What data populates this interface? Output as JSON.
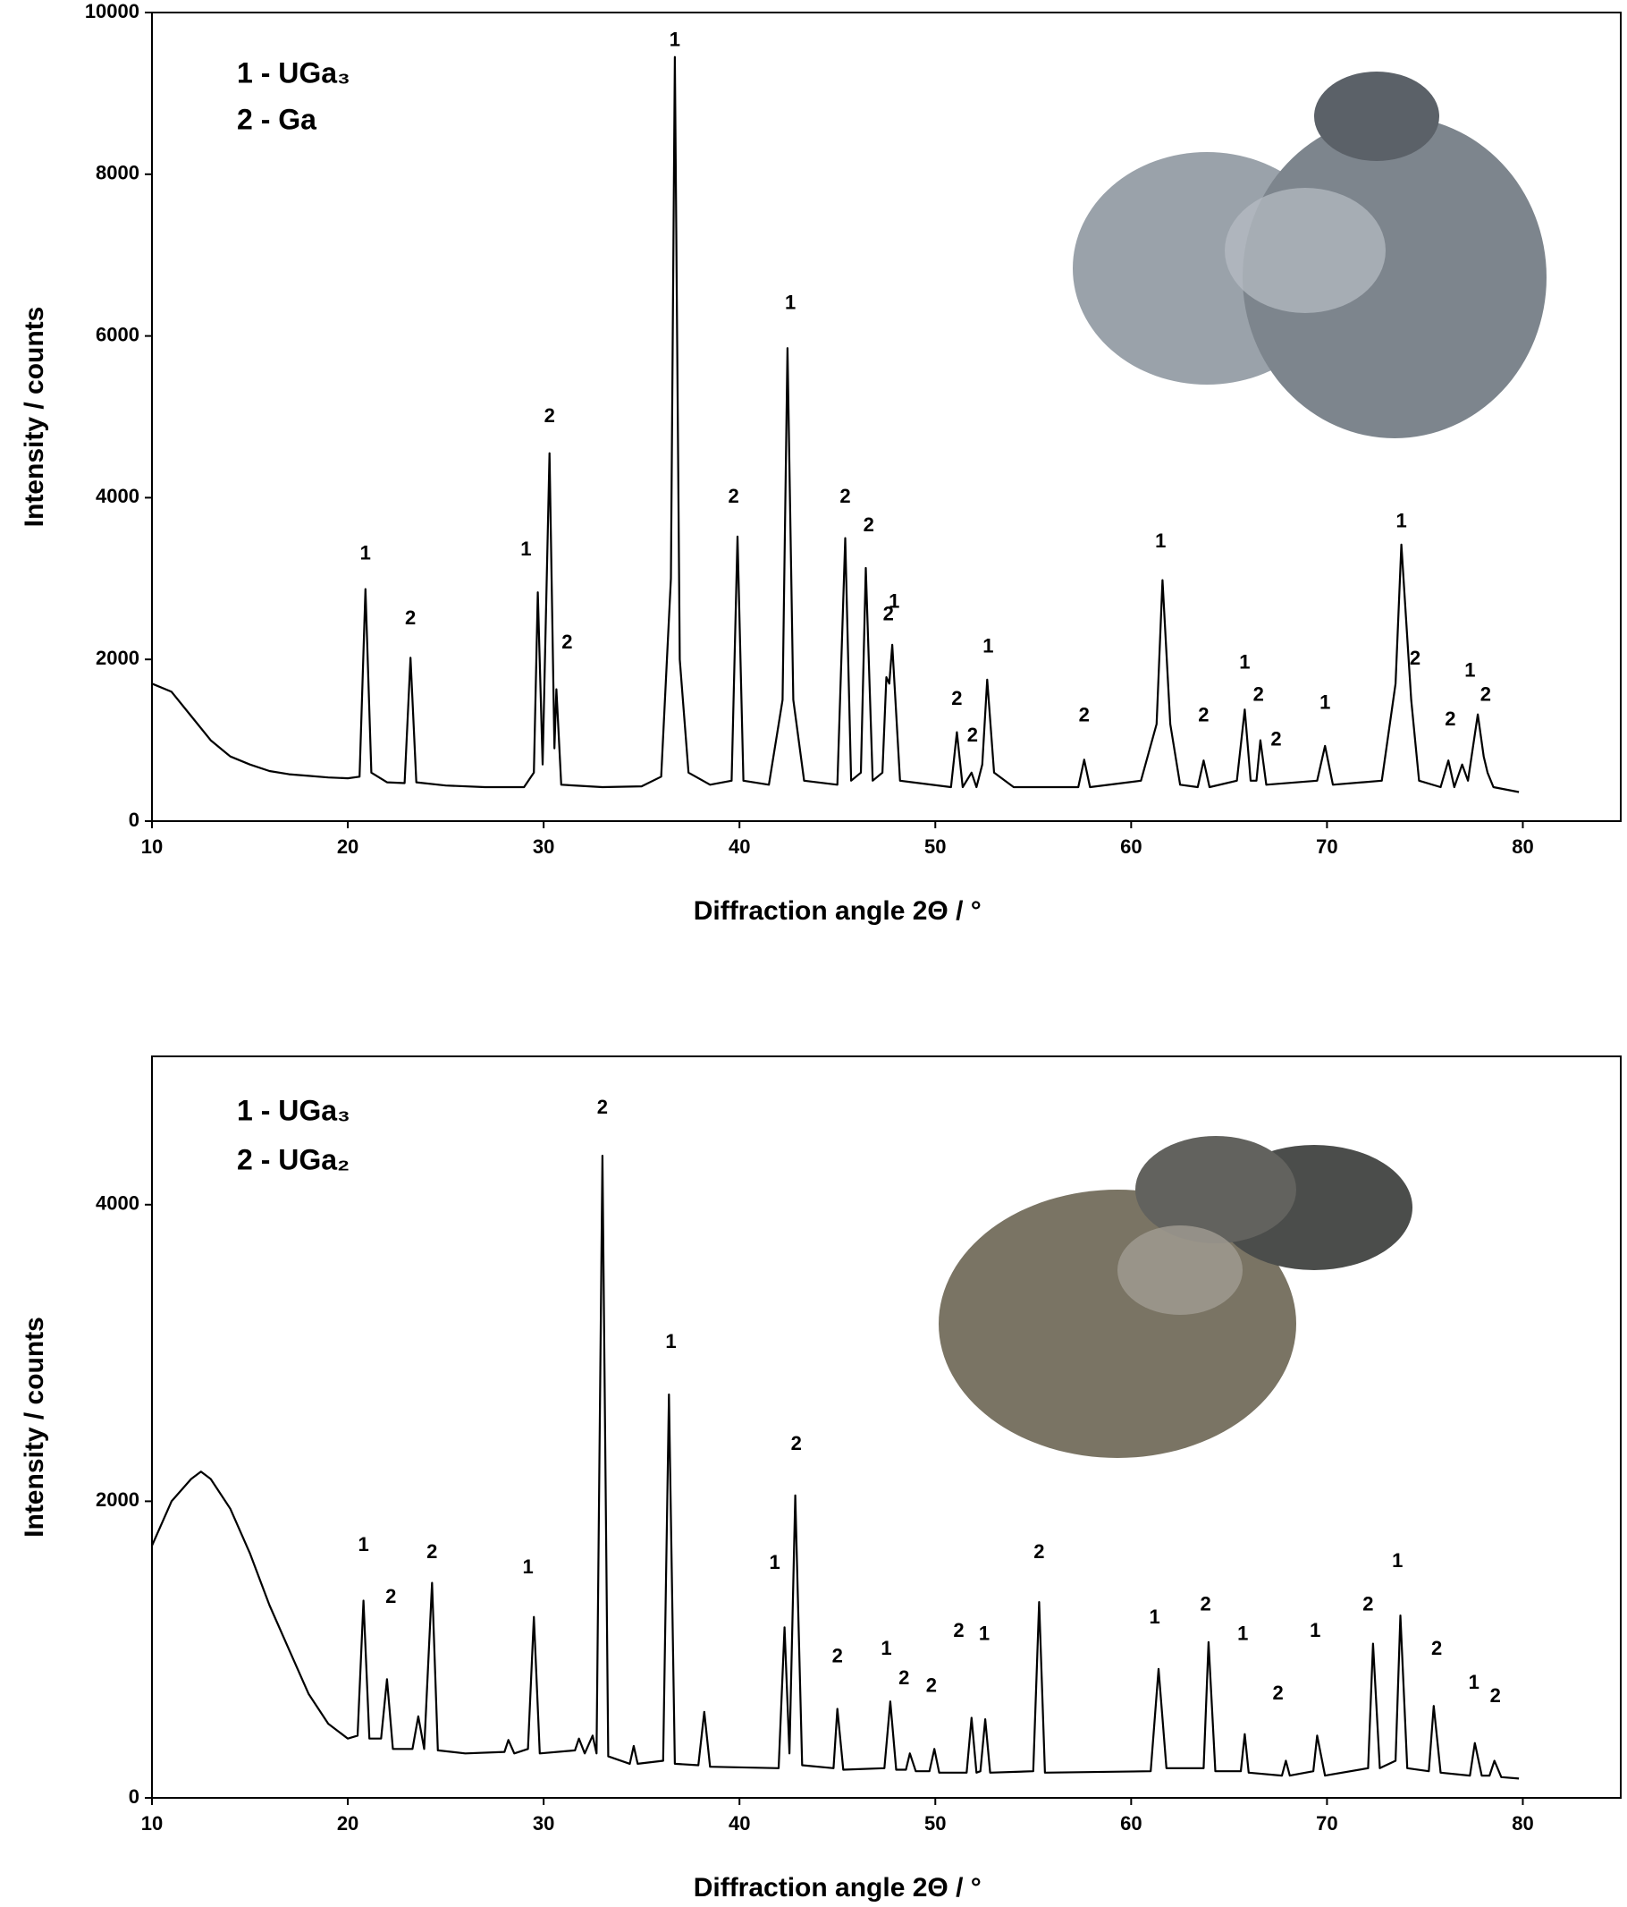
{
  "chart_data": [
    {
      "type": "line",
      "color": "#000000",
      "xlabel": "Diffraction angle 2Θ / °",
      "ylabel": "Intensity / counts",
      "legend_text": [
        "1 - UGa₃",
        "2 - Ga"
      ],
      "xlim": [
        10,
        85
      ],
      "xticks": [
        10,
        20,
        30,
        40,
        50,
        60,
        70,
        80
      ],
      "ylim": [
        0,
        10000
      ],
      "yticks": [
        0,
        2000,
        4000,
        6000,
        8000,
        10000
      ],
      "x": [
        10,
        11,
        12,
        13,
        14,
        15,
        16,
        17,
        18,
        19,
        20,
        20.6,
        20.9,
        21.2,
        22,
        22.9,
        23.2,
        23.5,
        25,
        27,
        29,
        29.5,
        29.7,
        29.95,
        30.3,
        30.55,
        30.65,
        30.9,
        33,
        35,
        36,
        36.5,
        36.7,
        36.95,
        37.4,
        38.5,
        39.6,
        39.9,
        40.2,
        41.5,
        42.2,
        42.45,
        42.75,
        43.3,
        45,
        45.4,
        45.7,
        46.2,
        46.45,
        46.8,
        47.3,
        47.5,
        47.65,
        47.8,
        48.2,
        50.8,
        51.1,
        51.4,
        51.85,
        52.1,
        52.4,
        52.65,
        53,
        54,
        57.3,
        57.6,
        57.9,
        60.5,
        61.3,
        61.6,
        62,
        62.5,
        63.4,
        63.7,
        64,
        65.4,
        65.8,
        66.1,
        66.4,
        66.6,
        66.9,
        69.5,
        69.9,
        70.3,
        72.8,
        73.5,
        73.8,
        74.3,
        74.7,
        75.8,
        76.2,
        76.5,
        76.9,
        77.2,
        77.7,
        78,
        78.2,
        78.5,
        79.8
      ],
      "values": [
        1700,
        1600,
        1300,
        1000,
        800,
        700,
        620,
        580,
        560,
        540,
        530,
        550,
        2870,
        600,
        480,
        470,
        2020,
        480,
        440,
        420,
        420,
        600,
        2830,
        700,
        4550,
        900,
        1630,
        450,
        420,
        430,
        550,
        3000,
        9450,
        2000,
        600,
        450,
        500,
        3520,
        500,
        450,
        1500,
        5850,
        1500,
        500,
        450,
        3500,
        500,
        600,
        3130,
        500,
        600,
        1780,
        1700,
        2180,
        500,
        420,
        1100,
        420,
        600,
        420,
        700,
        1750,
        600,
        420,
        420,
        760,
        420,
        500,
        1200,
        2980,
        1200,
        450,
        420,
        750,
        420,
        500,
        1380,
        500,
        500,
        1000,
        450,
        500,
        930,
        450,
        500,
        1700,
        3420,
        1500,
        500,
        420,
        750,
        420,
        700,
        500,
        1320,
        800,
        600,
        420,
        360
      ],
      "peak_labels": [
        {
          "text": "1",
          "x": 20.9,
          "y": 3300
        },
        {
          "text": "2",
          "x": 23.2,
          "y": 2500
        },
        {
          "text": "1",
          "x": 29.1,
          "y": 3350
        },
        {
          "text": "2",
          "x": 30.3,
          "y": 5000
        },
        {
          "text": "2",
          "x": 31.2,
          "y": 2200
        },
        {
          "text": "1",
          "x": 36.7,
          "y": 9650
        },
        {
          "text": "2",
          "x": 39.7,
          "y": 4000
        },
        {
          "text": "1",
          "x": 42.6,
          "y": 6400
        },
        {
          "text": "2",
          "x": 45.4,
          "y": 4000
        },
        {
          "text": "2",
          "x": 46.6,
          "y": 3650
        },
        {
          "text": "2",
          "x": 47.6,
          "y": 2550
        },
        {
          "text": "1",
          "x": 47.9,
          "y": 2700
        },
        {
          "text": "2",
          "x": 51.1,
          "y": 1500
        },
        {
          "text": "2",
          "x": 51.9,
          "y": 1050
        },
        {
          "text": "1",
          "x": 52.7,
          "y": 2150
        },
        {
          "text": "2",
          "x": 57.6,
          "y": 1300
        },
        {
          "text": "1",
          "x": 61.5,
          "y": 3450
        },
        {
          "text": "2",
          "x": 63.7,
          "y": 1300
        },
        {
          "text": "1",
          "x": 65.8,
          "y": 1950
        },
        {
          "text": "2",
          "x": 66.5,
          "y": 1550
        },
        {
          "text": "2",
          "x": 67.4,
          "y": 1000
        },
        {
          "text": "1",
          "x": 69.9,
          "y": 1450
        },
        {
          "text": "1",
          "x": 73.8,
          "y": 3700
        },
        {
          "text": "2",
          "x": 74.5,
          "y": 2000
        },
        {
          "text": "2",
          "x": 76.3,
          "y": 1250
        },
        {
          "text": "1",
          "x": 77.3,
          "y": 1850
        },
        {
          "text": "2",
          "x": 78.1,
          "y": 1550
        }
      ]
    },
    {
      "type": "line",
      "color": "#000000",
      "xlabel": "Diffraction angle 2Θ / °",
      "ylabel": "Intensity / counts",
      "legend_text": [
        "1 - UGa₃",
        "2 - UGa₂"
      ],
      "xlim": [
        10,
        85
      ],
      "xticks": [
        10,
        20,
        30,
        40,
        50,
        60,
        70,
        80
      ],
      "ylim": [
        0,
        5000
      ],
      "yticks": [
        0,
        2000,
        4000
      ],
      "x": [
        10,
        11,
        12,
        12.5,
        13,
        14,
        15,
        16,
        17,
        18,
        19,
        20,
        20.5,
        20.8,
        21.1,
        21.7,
        22,
        22.3,
        23.3,
        23.6,
        23.9,
        24.3,
        24.6,
        26,
        28,
        28.2,
        28.5,
        29.2,
        29.5,
        29.8,
        31.6,
        31.8,
        32.1,
        32.5,
        32.7,
        33,
        33.3,
        34.4,
        34.6,
        34.8,
        36.1,
        36.4,
        36.7,
        37.9,
        38.2,
        38.5,
        42,
        42.3,
        42.55,
        42.85,
        43.2,
        44.8,
        45,
        45.3,
        47.4,
        47.7,
        48,
        48.5,
        48.7,
        49,
        49.7,
        49.95,
        50.2,
        51.6,
        51.85,
        52.1,
        52.3,
        52.55,
        52.8,
        55,
        55.3,
        55.6,
        61,
        61.4,
        61.8,
        63.7,
        63.95,
        64.3,
        65.6,
        65.8,
        66,
        67.7,
        67.9,
        68.1,
        69.3,
        69.5,
        69.9,
        72.1,
        72.35,
        72.7,
        73.5,
        73.75,
        74.1,
        75.2,
        75.45,
        75.8,
        77.3,
        77.55,
        77.9,
        78.3,
        78.55,
        78.9,
        79.8
      ],
      "values": [
        1700,
        2000,
        2150,
        2200,
        2150,
        1950,
        1650,
        1300,
        1000,
        700,
        500,
        400,
        420,
        1330,
        400,
        400,
        800,
        330,
        330,
        550,
        330,
        1450,
        320,
        300,
        310,
        390,
        300,
        330,
        1220,
        300,
        320,
        400,
        300,
        420,
        300,
        4330,
        280,
        230,
        350,
        230,
        250,
        2720,
        230,
        220,
        580,
        210,
        200,
        1150,
        300,
        2040,
        220,
        200,
        600,
        190,
        200,
        650,
        190,
        190,
        300,
        180,
        180,
        330,
        170,
        170,
        540,
        170,
        180,
        530,
        170,
        180,
        1320,
        170,
        180,
        870,
        200,
        200,
        1050,
        180,
        180,
        430,
        170,
        150,
        250,
        150,
        180,
        420,
        150,
        200,
        1040,
        200,
        250,
        1230,
        200,
        180,
        620,
        170,
        150,
        370,
        150,
        150,
        250,
        140,
        130
      ],
      "peak_labels": [
        {
          "text": "1",
          "x": 20.8,
          "y": 1700
        },
        {
          "text": "2",
          "x": 22.2,
          "y": 1350
        },
        {
          "text": "2",
          "x": 24.3,
          "y": 1650
        },
        {
          "text": "1",
          "x": 29.2,
          "y": 1550
        },
        {
          "text": "2",
          "x": 33,
          "y": 4650
        },
        {
          "text": "1",
          "x": 36.5,
          "y": 3070
        },
        {
          "text": "1",
          "x": 41.8,
          "y": 1580
        },
        {
          "text": "2",
          "x": 42.9,
          "y": 2380
        },
        {
          "text": "2",
          "x": 45,
          "y": 950
        },
        {
          "text": "1",
          "x": 47.5,
          "y": 1000
        },
        {
          "text": "2",
          "x": 48.4,
          "y": 800
        },
        {
          "text": "2",
          "x": 49.8,
          "y": 750
        },
        {
          "text": "2",
          "x": 51.2,
          "y": 1120
        },
        {
          "text": "1",
          "x": 52.5,
          "y": 1100
        },
        {
          "text": "2",
          "x": 55.3,
          "y": 1650
        },
        {
          "text": "1",
          "x": 61.2,
          "y": 1210
        },
        {
          "text": "2",
          "x": 63.8,
          "y": 1300
        },
        {
          "text": "1",
          "x": 65.7,
          "y": 1100
        },
        {
          "text": "2",
          "x": 67.5,
          "y": 700
        },
        {
          "text": "1",
          "x": 69.4,
          "y": 1120
        },
        {
          "text": "2",
          "x": 72.1,
          "y": 1300
        },
        {
          "text": "1",
          "x": 73.6,
          "y": 1590
        },
        {
          "text": "2",
          "x": 75.6,
          "y": 1000
        },
        {
          "text": "1",
          "x": 77.5,
          "y": 770
        },
        {
          "text": "2",
          "x": 78.6,
          "y": 680
        }
      ]
    }
  ]
}
